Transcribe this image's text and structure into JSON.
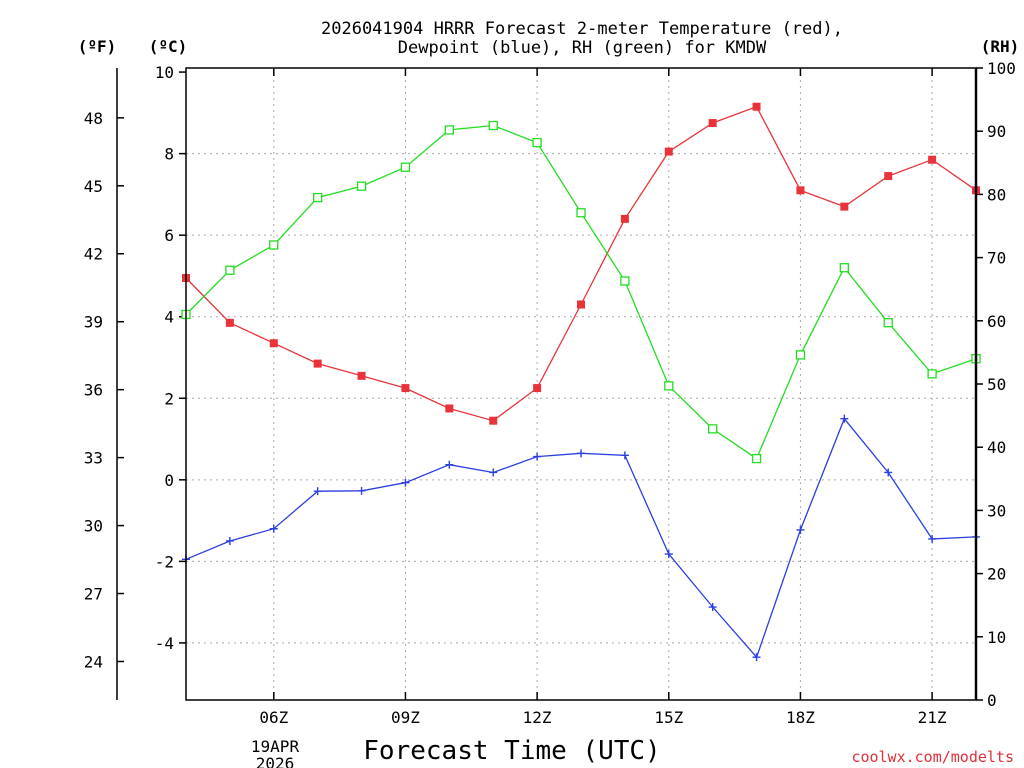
{
  "title": {
    "line1": "2026041904 HRRR Forecast 2-meter Temperature (red),",
    "line2": "Dewpoint (blue), RH (green) for KMDW"
  },
  "units": {
    "f": "(ºF)",
    "c": "(ºC)",
    "rh": "(RH)"
  },
  "xaxis": {
    "label": "Forecast Time (UTC)",
    "date_day": "19APR",
    "date_year": "2026",
    "ticks": [
      {
        "label": "06Z",
        "hour": 6
      },
      {
        "label": "09Z",
        "hour": 9
      },
      {
        "label": "12Z",
        "hour": 12
      },
      {
        "label": "15Z",
        "hour": 15
      },
      {
        "label": "18Z",
        "hour": 18
      },
      {
        "label": "21Z",
        "hour": 21
      }
    ]
  },
  "credit": "coolwx.com/modelts",
  "colors": {
    "temp": "#e8333b",
    "dewpoint": "#2b3fe0",
    "rh": "#22dd22"
  },
  "chart_data": {
    "type": "line",
    "title": "2026041904 HRRR Forecast 2-meter Temperature (red), Dewpoint (blue), RH (green) for KMDW",
    "xlabel": "Forecast Time (UTC)",
    "ylabel_left": "(ºC)",
    "ylabel_right": "(RH)",
    "xlim": [
      4,
      22
    ],
    "ylim_c": [
      -5.4,
      10.1
    ],
    "ylim_rh": [
      0,
      100
    ],
    "ylim_f": [
      22.3,
      50.2
    ],
    "yticks_c": [
      "10",
      "8",
      "6",
      "4",
      "2",
      "0",
      "-2",
      "-4"
    ],
    "yticks_c_values": [
      10,
      8,
      6,
      4,
      2,
      0,
      -2,
      -4
    ],
    "yticks_f": [
      "48",
      "45",
      "42",
      "39",
      "36",
      "33",
      "30",
      "27",
      "24"
    ],
    "yticks_f_values": [
      48,
      45,
      42,
      39,
      36,
      33,
      30,
      27,
      24
    ],
    "yticks_rh": [
      "100",
      "90",
      "80",
      "70",
      "60",
      "50",
      "40",
      "30",
      "20",
      "10",
      "0"
    ],
    "yticks_rh_values": [
      100,
      90,
      80,
      70,
      60,
      50,
      40,
      30,
      20,
      10,
      0
    ],
    "x": [
      4,
      5,
      6,
      7,
      8,
      9,
      10,
      11,
      12,
      13,
      14,
      15,
      16,
      17,
      18,
      19,
      20,
      21,
      22
    ],
    "series": [
      {
        "name": "Temperature",
        "axis": "c",
        "color": "#e8333b",
        "marker": "filled-square",
        "values": [
          4.95,
          3.85,
          3.35,
          2.85,
          2.55,
          2.25,
          1.75,
          1.45,
          2.25,
          4.3,
          6.4,
          8.05,
          8.75,
          9.15,
          7.1,
          6.7,
          7.45,
          7.85,
          7.1
        ]
      },
      {
        "name": "Dewpoint",
        "axis": "c",
        "color": "#2b3fe0",
        "marker": "plus",
        "values": [
          -1.95,
          -1.5,
          -1.2,
          -0.28,
          -0.27,
          -0.07,
          0.37,
          0.18,
          0.57,
          0.65,
          0.6,
          -1.82,
          -3.12,
          -4.35,
          -1.23,
          1.5,
          0.18,
          -1.45,
          -1.4
        ]
      },
      {
        "name": "RH",
        "axis": "rh",
        "color": "#22dd22",
        "marker": "open-square",
        "values": [
          61,
          68,
          72,
          79.5,
          81.3,
          84.3,
          90.2,
          90.9,
          88.2,
          77.1,
          66.3,
          49.7,
          42.9,
          38.2,
          54.6,
          68.4,
          59.7,
          51.6,
          54
        ]
      }
    ]
  }
}
